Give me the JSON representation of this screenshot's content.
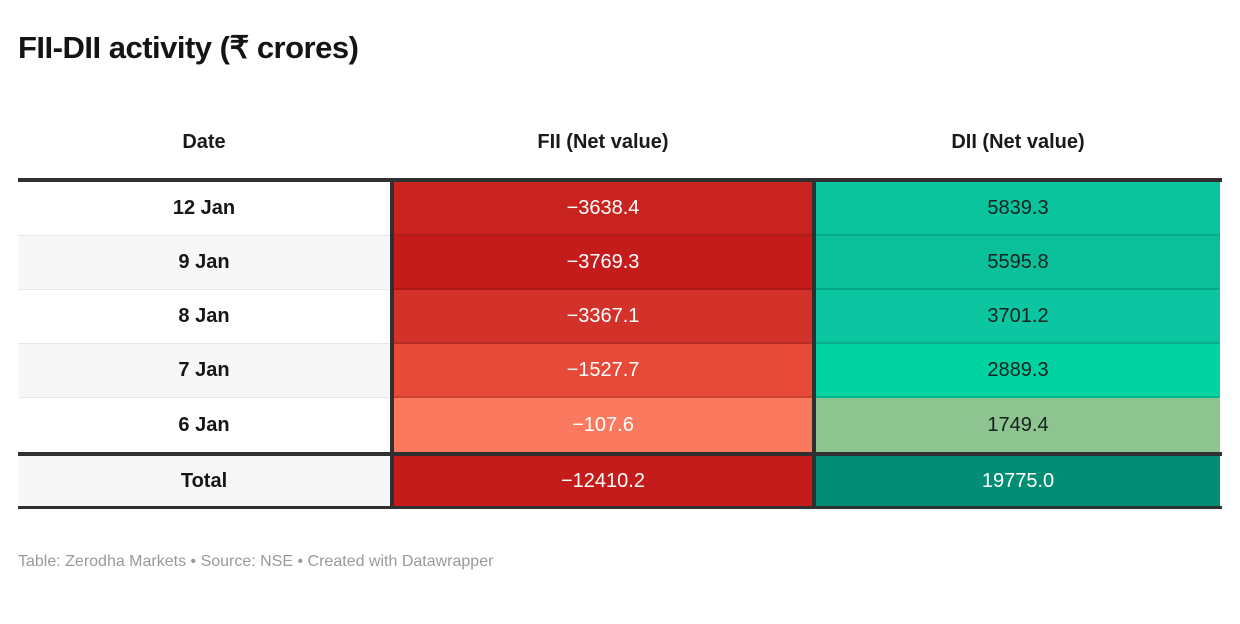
{
  "title": "FII-DII activity (₹ crores)",
  "footer": "Table: Zerodha Markets • Source: NSE • Created with Datawrapper",
  "table": {
    "header": {
      "date": "Date",
      "fii": "FII (Net value)",
      "dii": "DII (Net value)"
    },
    "rows": [
      {
        "date": "12 Jan",
        "fii": "−3638.4",
        "dii": "5839.3",
        "date_bg": "#ffffff",
        "fii_bg": "#c9231f",
        "dii_bg": "#0ac49e",
        "fii_fg": "#ffffff",
        "dii_fg": "#13211f"
      },
      {
        "date": "9 Jan",
        "fii": "−3769.3",
        "dii": "5595.8",
        "date_bg": "#f7f7f7",
        "fii_bg": "#c31c1b",
        "dii_bg": "#09c09b",
        "fii_fg": "#ffffff",
        "dii_fg": "#13211f"
      },
      {
        "date": "8 Jan",
        "fii": "−3367.1",
        "dii": "3701.2",
        "date_bg": "#ffffff",
        "fii_bg": "#d23229",
        "dii_bg": "#0bc6a1",
        "fii_fg": "#ffffff",
        "dii_fg": "#13211f"
      },
      {
        "date": "7 Jan",
        "fii": "−1527.7",
        "dii": "2889.3",
        "date_bg": "#f7f7f7",
        "fii_bg": "#e74a39",
        "dii_bg": "#00d3a2",
        "fii_fg": "#ffffff",
        "dii_fg": "#13211f"
      },
      {
        "date": "6 Jan",
        "fii": "−107.6",
        "dii": "1749.4",
        "date_bg": "#ffffff",
        "fii_bg": "#fb7a5f",
        "dii_bg": "#8ec48f",
        "fii_fg": "#ffffff",
        "dii_fg": "#13211f"
      }
    ],
    "total_row": {
      "date": "Total",
      "fii": "−12410.2",
      "dii": "19775.0",
      "date_bg": "#f7f7f7",
      "fii_bg": "#c31c1b",
      "dii_bg": "#028e74",
      "fii_fg": "#ffffff",
      "dii_fg": "#ffffff"
    }
  },
  "chart_data": {
    "type": "table",
    "title": "FII-DII activity (₹ crores)",
    "columns": [
      "Date",
      "FII (Net value)",
      "DII (Net value)"
    ],
    "rows": [
      [
        "12 Jan",
        -3638.4,
        5839.3
      ],
      [
        "9 Jan",
        -3769.3,
        5595.8
      ],
      [
        "8 Jan",
        -3367.1,
        3701.2
      ],
      [
        "7 Jan",
        -1527.7,
        2889.3
      ],
      [
        "6 Jan",
        -107.6,
        1749.4
      ]
    ],
    "total": [
      "Total",
      -12410.2,
      19775.0
    ],
    "heatmap_legend": "FII column shaded red (more negative = darker red), DII column shaded green (larger = darker/teal)",
    "source": "Table: Zerodha Markets • Source: NSE • Created with Datawrapper"
  }
}
